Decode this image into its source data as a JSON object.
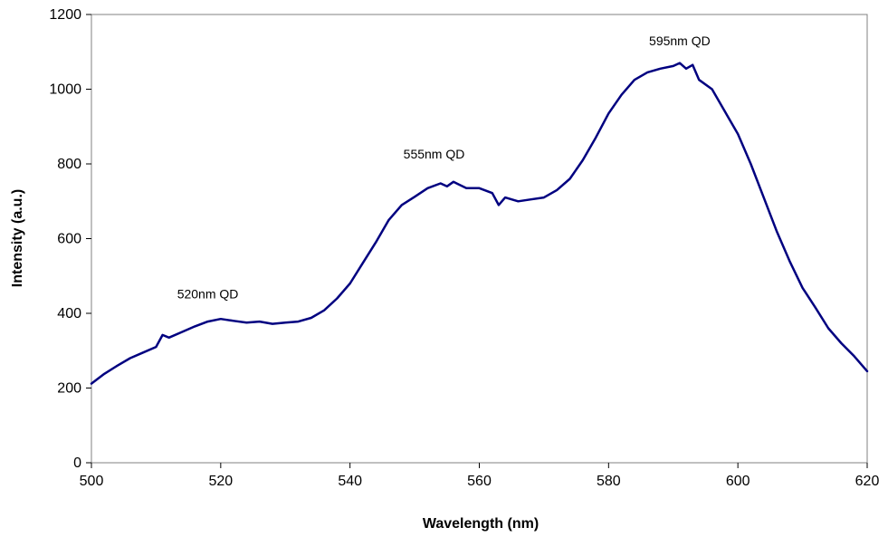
{
  "chart_data": {
    "type": "line",
    "title": "",
    "xlabel": "Wavelength (nm)",
    "ylabel": "Intensity (a.u.)",
    "xlim": [
      500,
      620
    ],
    "ylim": [
      0,
      1200
    ],
    "x_ticks": [
      500,
      520,
      540,
      560,
      580,
      600,
      620
    ],
    "y_ticks": [
      0,
      200,
      400,
      600,
      800,
      1000,
      1200
    ],
    "grid": false,
    "legend": "none",
    "line_color": "#000080",
    "series": [
      {
        "x": [
          500,
          502,
          504,
          506,
          508,
          510,
          511,
          512,
          514,
          516,
          518,
          520,
          522,
          524,
          526,
          528,
          530,
          532,
          534,
          536,
          538,
          540,
          542,
          544,
          546,
          548,
          550,
          552,
          554,
          555,
          556,
          558,
          560,
          562,
          563,
          564,
          566,
          568,
          570,
          572,
          574,
          576,
          578,
          580,
          582,
          584,
          586,
          588,
          590,
          591,
          592,
          593,
          594,
          596,
          598,
          600,
          602,
          604,
          606,
          608,
          610,
          612,
          614,
          616,
          618,
          620
        ],
        "y": [
          212,
          238,
          260,
          280,
          295,
          310,
          342,
          335,
          350,
          365,
          378,
          385,
          380,
          375,
          378,
          372,
          375,
          378,
          388,
          408,
          440,
          480,
          535,
          590,
          650,
          690,
          712,
          735,
          748,
          740,
          752,
          735,
          735,
          722,
          690,
          710,
          700,
          705,
          710,
          730,
          760,
          810,
          870,
          935,
          985,
          1025,
          1045,
          1055,
          1062,
          1070,
          1055,
          1065,
          1025,
          1000,
          940,
          880,
          800,
          710,
          620,
          540,
          468,
          415,
          360,
          320,
          285,
          245
        ]
      }
    ],
    "annotations": [
      {
        "text": "520nm QD",
        "x": 518,
        "y": 440
      },
      {
        "text": "555nm QD",
        "x": 553,
        "y": 815
      },
      {
        "text": "595nm QD",
        "x": 591,
        "y": 1117
      }
    ]
  }
}
